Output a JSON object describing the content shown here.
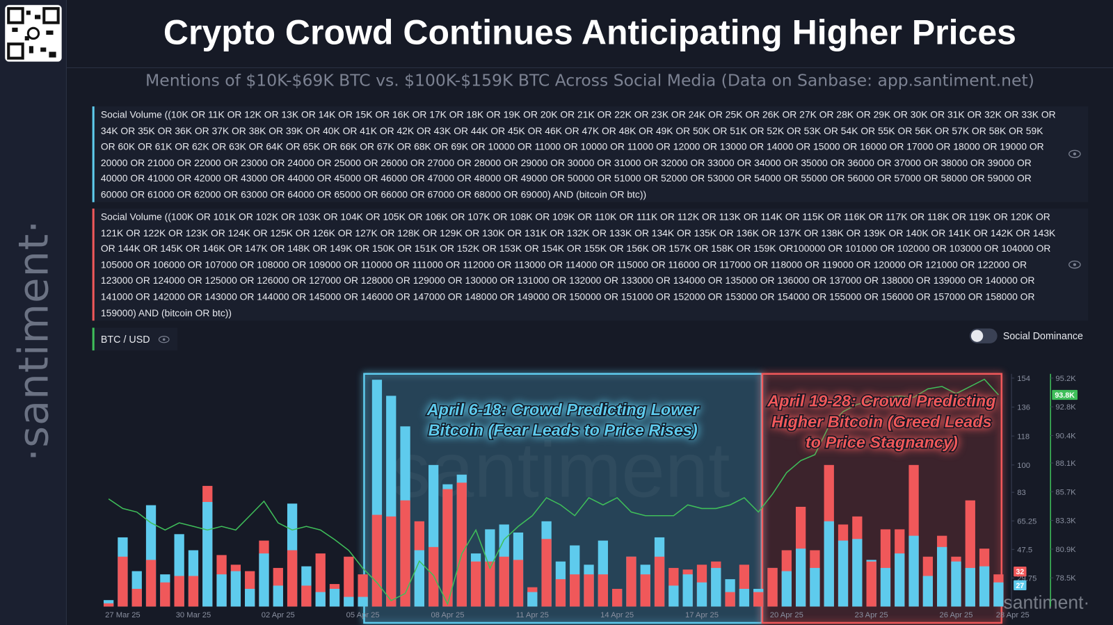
{
  "chart_data": {
    "type": "bar",
    "title": "Crypto Crowd Continues Anticipating Higher Prices",
    "subtitle": "Mentions of $10K-$69K BTC vs. $100K-$159K BTC Across Social Media (Data on Sanbase: app.santiment.net)",
    "brand": "·santiment·",
    "watermark": "santiment",
    "toggle_label": "Social Dominance",
    "categories": [
      null,
      "27 Mar 25",
      null,
      null,
      null,
      null,
      "30 Mar 25",
      null,
      null,
      null,
      null,
      null,
      "02 Apr 25",
      null,
      null,
      null,
      null,
      null,
      "05 Apr 25",
      null,
      null,
      null,
      null,
      null,
      "08 Apr 25",
      null,
      null,
      null,
      null,
      null,
      "11 Apr 25",
      null,
      null,
      null,
      null,
      null,
      "14 Apr 25",
      null,
      null,
      null,
      null,
      null,
      "17 Apr 25",
      null,
      null,
      null,
      null,
      null,
      "20 Apr 25",
      null,
      null,
      null,
      null,
      null,
      "23 Apr 25",
      null,
      null,
      null,
      null,
      null,
      "26 Apr 25",
      null,
      null,
      null,
      "28 Apr 25"
    ],
    "series": [
      {
        "name": "Social Volume ((10K OR 11K OR 12K OR 13K OR 14K OR 15K OR 16K OR 17K OR 18K OR 19K OR 20K OR 21K OR 22K OR 23K OR 24K OR 25K OR 26K OR 27K OR 28K OR 29K OR 30K OR 31K OR 32K OR 33K OR 34K OR 35K OR 36K OR 37K OR 38K OR 39K OR 40K OR 41K OR 42K OR 43K OR 44K OR 45K OR 46K OR 47K OR 48K OR 49K OR 50K OR 51K OR 52K OR 53K OR 54K OR 55K OR 56K OR 57K OR 58K OR 59K OR 60K OR 61K OR 62K OR 63K OR 64K OR 65K OR 66K OR 67K OR 68K OR 69K OR 10000 OR 11000 OR 10000 OR 11000 OR 12000 OR 13000 OR 14000 OR 15000 OR 16000 OR 17000 OR 18000 OR 19000 OR 20000 OR 21000 OR 22000 OR 23000 OR 24000 OR 25000 OR 26000 OR 27000 OR 28000 OR 29000 OR 30000 OR 31000 OR 32000 OR 33000 OR 34000 OR 35000 OR 36000 OR 37000 OR 38000 OR 39000 OR 40000 OR 41000 OR 42000 OR 43000 OR 44000 OR 45000 OR 46000 OR 47000 OR 48000 OR 49000 OR 50000 OR 51000 OR 52000 OR 53000 OR 54000 OR 55000 OR 56000 OR 57000 OR 58000 OR 59000 OR 60000 OR 61000 OR 62000 OR 63000 OR 64000 OR 65000 OR 66000 OR 67000 OR 68000 OR 69000) AND (bitcoin OR btc))",
        "color": "#5ecbed",
        "values": [
          16,
          55,
          34,
          75,
          32,
          57,
          47,
          77,
          32,
          34,
          23,
          45,
          25,
          76,
          37,
          21,
          23,
          18,
          18,
          153,
          143,
          124,
          47,
          100,
          88,
          94,
          45,
          60,
          63,
          58,
          21,
          65,
          40,
          50,
          38,
          53,
          23,
          43,
          38,
          55,
          25,
          32,
          27,
          36,
          29,
          23,
          23,
          36,
          34,
          48,
          36,
          65,
          53,
          54,
          41,
          36,
          45,
          56,
          31,
          49,
          40,
          36,
          37,
          27,
          null
        ]
      },
      {
        "name": "Social Volume ((100K OR 101K OR 102K OR 103K OR 104K OR 105K OR 106K OR 107K OR 108K OR 109K OR 110K OR 111K OR 112K OR 113K OR 114K OR 115K OR 116K OR 117K OR 118K OR 119K OR 120K OR 121K OR 122K OR 123K OR 124K OR 125K OR 126K OR 127K OR 128K OR 129K OR 130K OR 131K OR 132K OR 133K OR 134K OR 135K OR 136K OR 137K OR 138K OR 139K OR 140K OR 141K OR 142K OR 143K OR 144K OR 145K OR 146K OR 147K OR 148K OR 149K OR 150K OR 151K OR 152K OR 153K OR 154K OR 155K OR 156K OR 157K OR 158K OR 159K OR100000 OR 101000 OR 102000 OR 103000 OR 104000 OR 105000 OR 106000 OR 107000 OR 108000 OR 109000 OR 110000 OR 111000 OR 112000 OR 113000 OR 114000 OR 115000 OR 116000 OR 117000 OR 118000 OR 119000 OR 120000 OR 121000 OR 122000 OR 123000 OR 124000 OR 125000 OR 126000 OR 127000 OR 128000 OR 129000 OR 130000 OR 131000 OR 132000 OR 133000 OR 134000 OR 135000 OR 136000 OR 137000 OR 138000 OR 139000 OR 140000 OR 141000 OR 142000 OR 143000 OR 144000 OR 145000 OR 146000 OR 147000 OR 148000 OR 149000 OR 150000 OR 151000 OR 152000 OR 153000 OR 154000 OR 155000 OR 156000 OR 157000 OR 158000 OR 159000) AND (bitcoin OR btc))",
        "color": "#f0585a",
        "values": [
          14,
          43,
          23,
          41,
          27,
          31,
          31,
          87,
          44,
          38,
          34,
          53,
          36,
          47,
          25,
          45,
          26,
          43,
          32,
          69,
          68,
          78,
          65,
          49,
          85,
          89,
          40,
          40,
          43,
          41,
          24,
          54,
          29,
          32,
          32,
          32,
          23,
          43,
          32,
          43,
          36,
          35,
          38,
          40,
          21,
          38,
          21,
          36,
          47,
          74,
          47,
          100,
          63,
          68,
          40,
          60,
          60,
          100,
          43,
          56,
          43,
          78,
          48,
          32,
          null
        ]
      },
      {
        "name": "BTC / USD",
        "color": "#3fbf5a",
        "axis": "y2",
        "type": "line",
        "last_value_label": "93.8K",
        "values": [
          85100,
          84300,
          84000,
          83100,
          82500,
          83100,
          82800,
          82500,
          82800,
          82500,
          83700,
          84900,
          83100,
          82500,
          82800,
          82500,
          81700,
          80800,
          79300,
          78100,
          76600,
          77200,
          79900,
          78700,
          76300,
          80500,
          82500,
          79300,
          81700,
          82800,
          83700,
          85200,
          84600,
          83700,
          85200,
          84600,
          85200,
          84000,
          83700,
          83700,
          83700,
          84600,
          84300,
          84300,
          84600,
          85200,
          84000,
          85500,
          87300,
          88300,
          88800,
          91200,
          92400,
          93000,
          93300,
          93600,
          93700,
          93600,
          94300,
          94500,
          93900,
          94500,
          95100,
          93800,
          null
        ]
      }
    ],
    "ylim": [
      12,
      154
    ],
    "yticks": [
      29.75,
      47.5,
      65.25,
      83,
      100,
      118,
      136,
      154
    ],
    "y2lim": [
      76100,
      95200
    ],
    "y2ticks": [
      {
        "value": 78500,
        "label": "78.5K"
      },
      {
        "value": 80900,
        "label": "80.9K"
      },
      {
        "value": 83300,
        "label": "83.3K"
      },
      {
        "value": 85700,
        "label": "85.7K"
      },
      {
        "value": 88100,
        "label": "88.1K"
      },
      {
        "value": 90400,
        "label": "90.4K"
      },
      {
        "value": 92800,
        "label": "92.8K"
      },
      {
        "value": 95200,
        "label": "95.2K"
      }
    ],
    "grid": false,
    "annotations": [
      {
        "lines": [
          "April 6-18: Crowd Predicting Lower",
          "Bitcoin (Fear Leads to Price Rises)"
        ],
        "color": "#5ecbed"
      },
      {
        "lines": [
          "April 19-28: Crowd Predicting",
          "Higher Bitcoin (Greed Leads",
          "to Price Stagnancy)"
        ],
        "color": "#f0585a"
      }
    ]
  }
}
